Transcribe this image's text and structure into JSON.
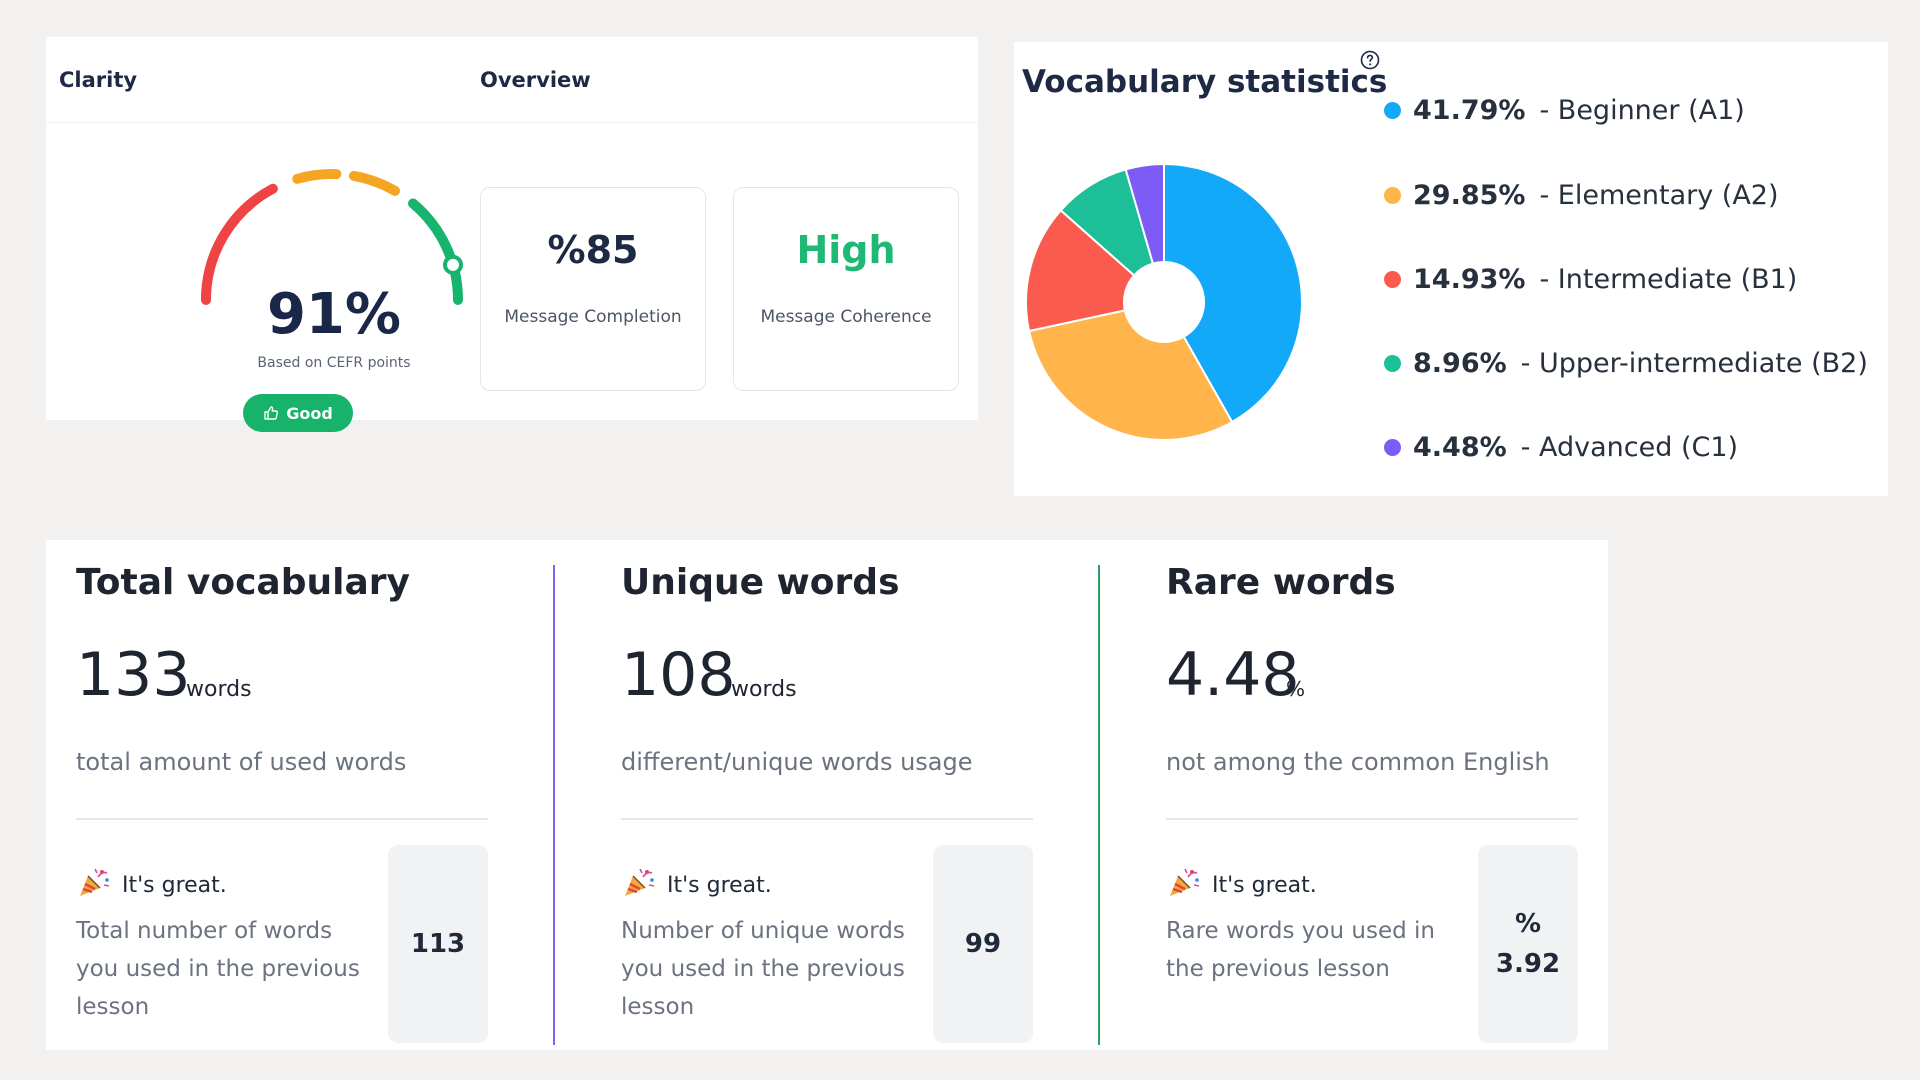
{
  "clarity": {
    "title": "Clarity",
    "overview_title": "Overview",
    "gauge_value": "91%",
    "gauge_fraction": 0.91,
    "gauge_caption": "Based on CEFR points",
    "badge_label": "Good",
    "colors": {
      "red": "#ef4444",
      "orange": "#f5a524",
      "green": "#16b46c",
      "badge": "#18b36b"
    }
  },
  "overview": {
    "completion_value": "%85",
    "completion_label": "Message Completion",
    "coherence_value": "High",
    "coherence_label": "Message Coherence"
  },
  "vocab_stats": {
    "title": "Vocabulary statistics",
    "help_icon": "question-circle-icon"
  },
  "chart_data": {
    "type": "pie",
    "donut": true,
    "slices": [
      {
        "label": "Beginner (A1)",
        "pct_label": "41.79%",
        "value": 41.79,
        "color": "#13a9f9"
      },
      {
        "label": "Elementary (A2)",
        "pct_label": "29.85%",
        "value": 29.85,
        "color": "#ffb54c"
      },
      {
        "label": "Intermediate (B1)",
        "pct_label": "14.93%",
        "value": 14.93,
        "color": "#fb5a4e"
      },
      {
        "label": "Upper-intermediate (B2)",
        "pct_label": "8.96%",
        "value": 8.96,
        "color": "#1dbf98"
      },
      {
        "label": "Advanced (C1)",
        "pct_label": "4.48%",
        "value": 4.48,
        "color": "#7c5cf5"
      }
    ],
    "legend_position": "right"
  },
  "metrics": [
    {
      "title": "Total vocabulary",
      "value": "133",
      "unit": "words",
      "description": "total amount of used words",
      "great": "It's great.",
      "previous_text": "Total number of words you used in the previous lesson",
      "previous_value": "113",
      "previous_prefix": ""
    },
    {
      "title": "Unique words",
      "value": "108",
      "unit": "words",
      "description": "different/unique words usage",
      "great": "It's great.",
      "previous_text": "Number of unique words you used in the previous lesson",
      "previous_value": "99",
      "previous_prefix": ""
    },
    {
      "title": "Rare words",
      "value": "4.48",
      "unit": "%",
      "description": "not among the common English",
      "great": "It's great.",
      "previous_text": "Rare words you used in the previous lesson",
      "previous_value": "3.92",
      "previous_prefix": "%"
    }
  ],
  "icons": {
    "badge": "thumbs-up-icon",
    "celebrate": "party-popper-icon"
  }
}
